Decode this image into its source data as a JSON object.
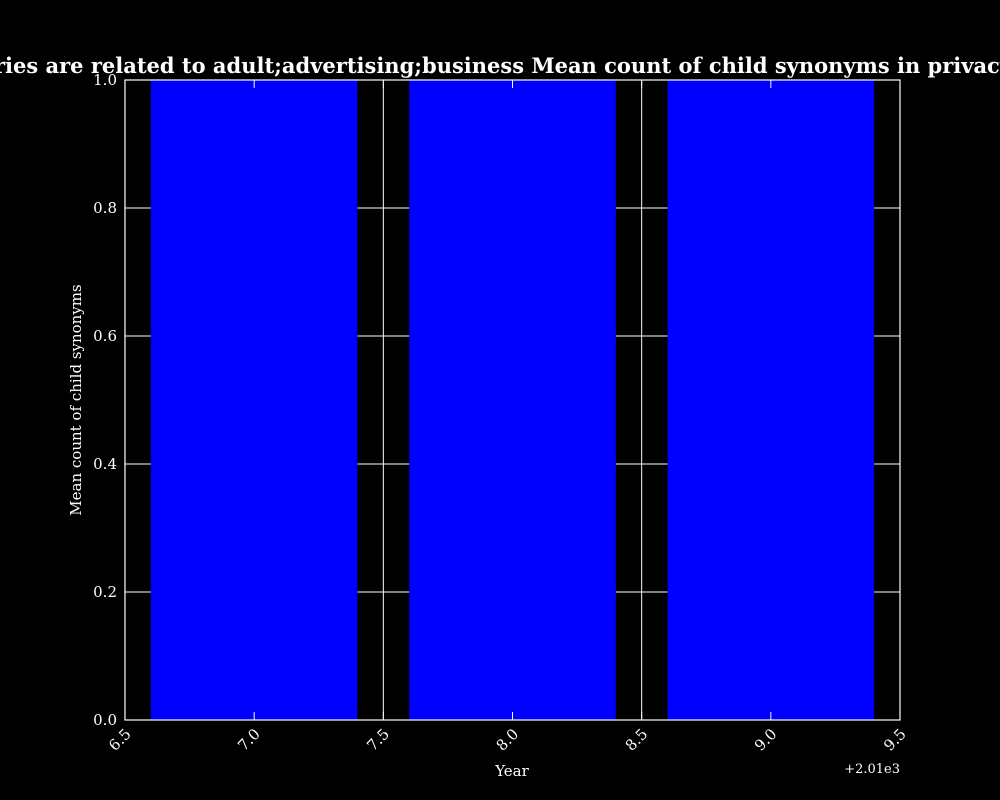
{
  "colors": {
    "background": "#000000",
    "axes": "#ffffff",
    "bar": "#0000ff",
    "grid": "#ffffff"
  },
  "chart_data": {
    "type": "bar",
    "title": "en categories are related to adult;advertising;business Mean count of child synonyms in privacy policies by",
    "xlabel": "Year",
    "ylabel": "Mean count of child synonyms",
    "x_offset_label": "+2.01e3",
    "xlim": [
      6.5,
      9.5
    ],
    "ylim": [
      0.0,
      1.0
    ],
    "xticks": [
      6.5,
      7.0,
      7.5,
      8.0,
      8.5,
      9.0,
      9.5
    ],
    "xtick_labels": [
      "6.5",
      "7.0",
      "7.5",
      "8.0",
      "8.5",
      "9.0",
      "9.5"
    ],
    "yticks": [
      0.0,
      0.2,
      0.4,
      0.6,
      0.8,
      1.0
    ],
    "ytick_labels": [
      "0.0",
      "0.2",
      "0.4",
      "0.6",
      "0.8",
      "1.0"
    ],
    "grid": true,
    "bar_width": 0.8,
    "x": [
      7,
      8,
      9
    ],
    "values": [
      1.0,
      1.0,
      1.0
    ]
  }
}
